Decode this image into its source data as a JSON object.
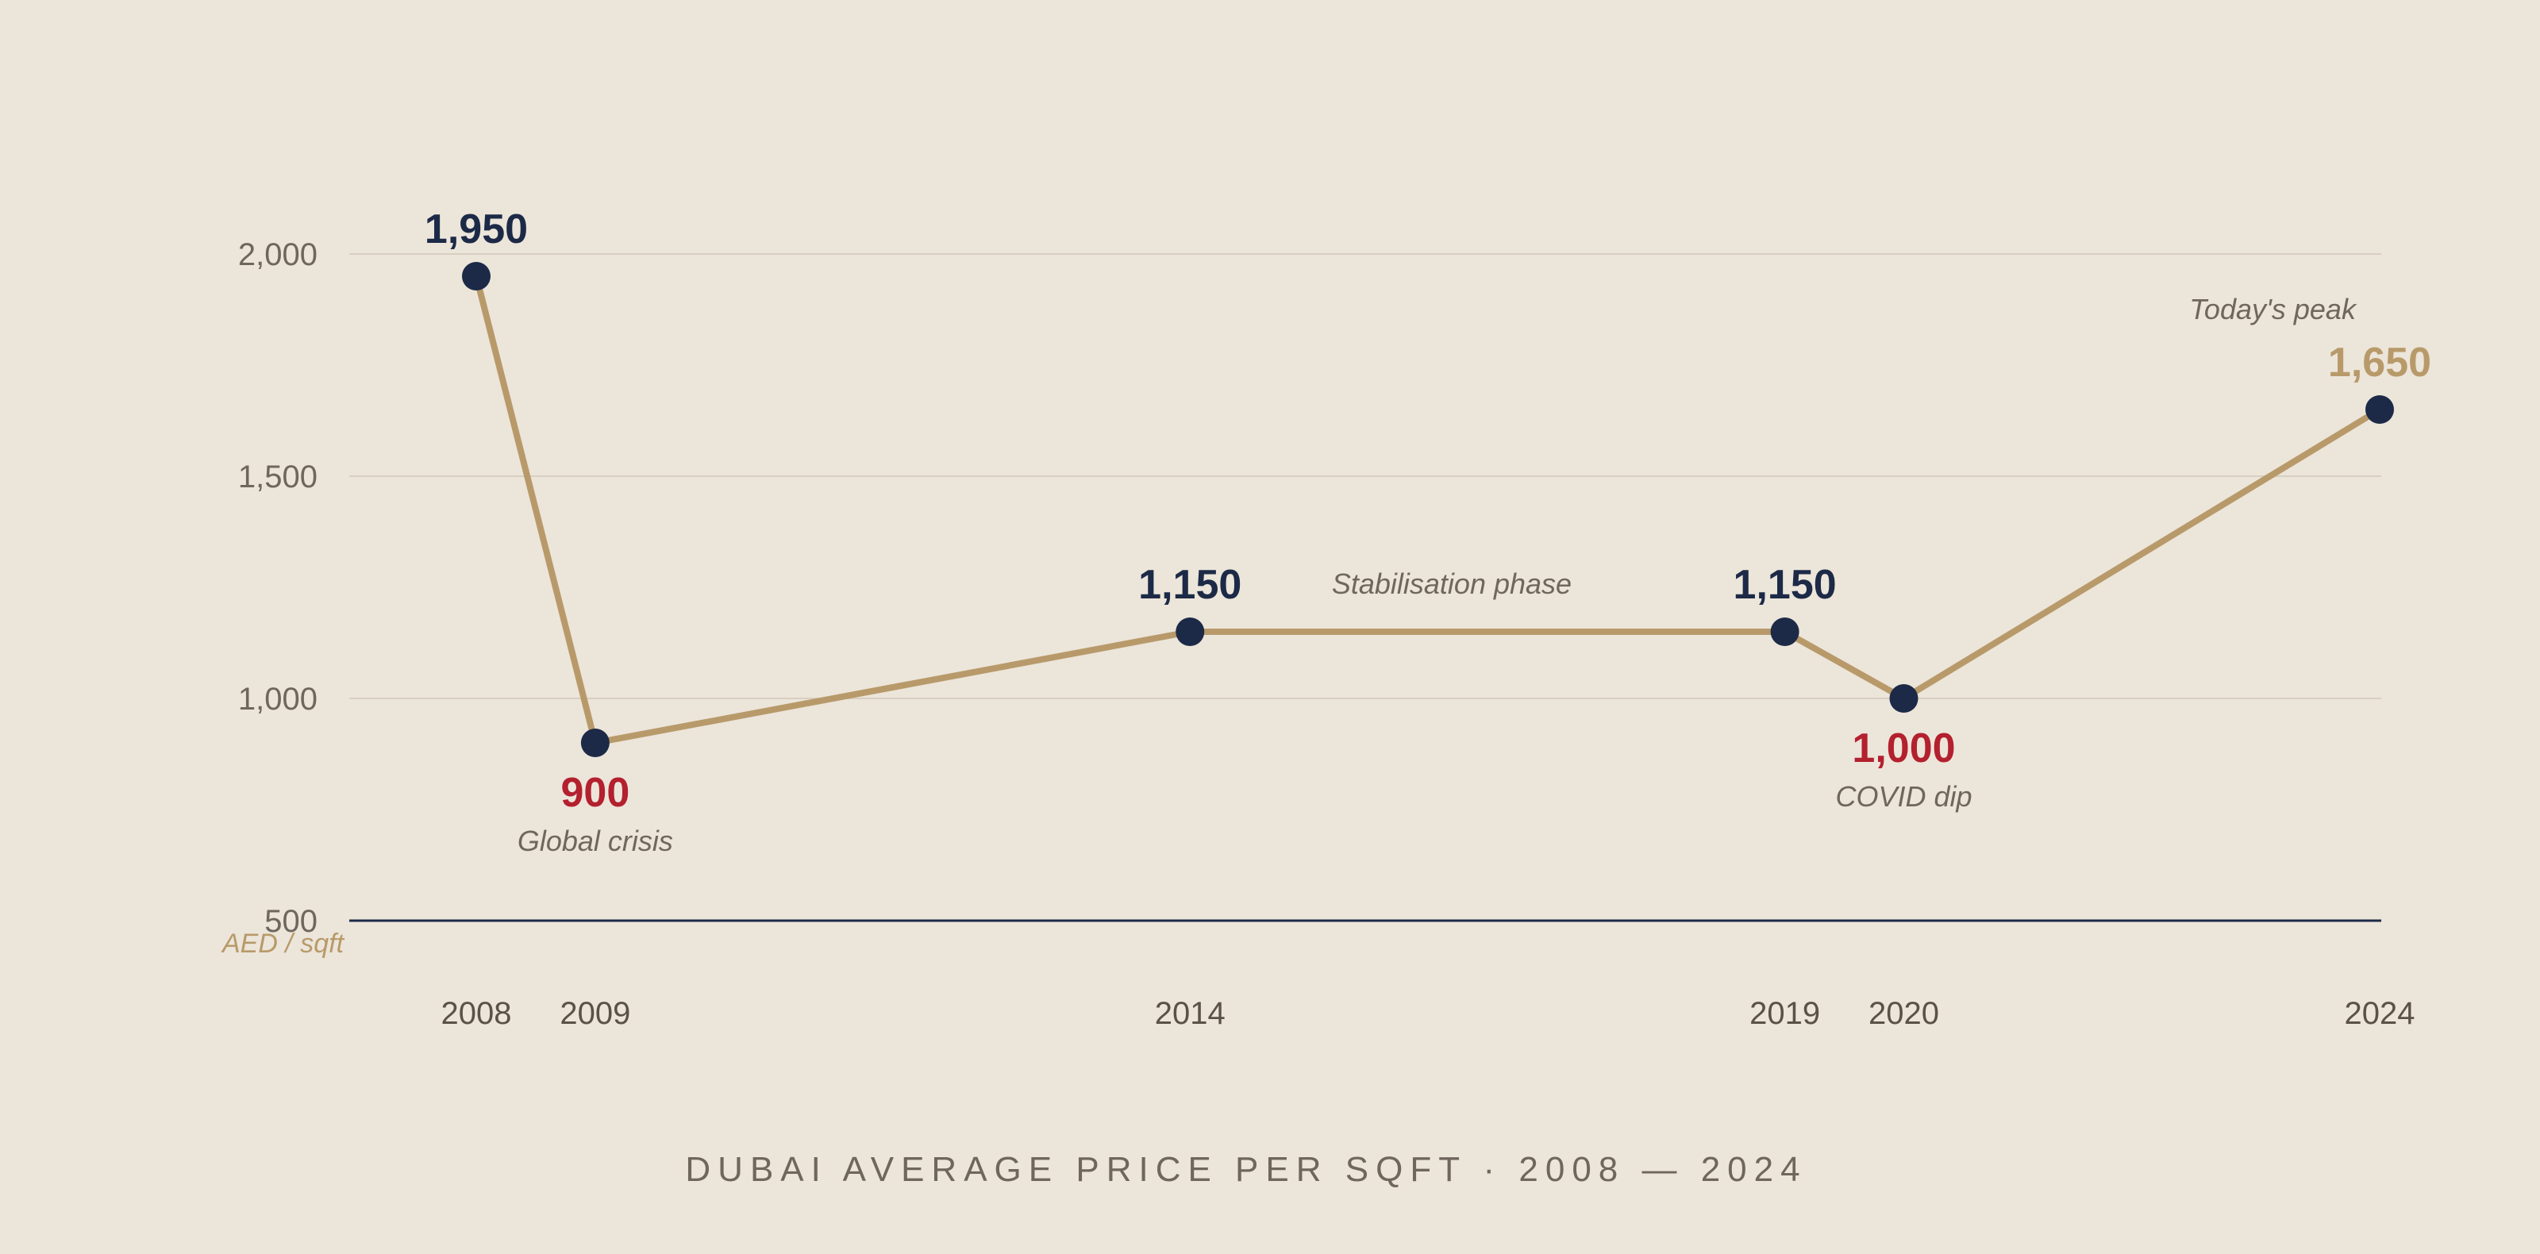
{
  "chart_data": {
    "type": "line",
    "title": "DUBAI AVERAGE PRICE PER SQFT · 2008 — 2024",
    "ylabel": "AED / sqft",
    "xlabel": "",
    "ylim": [
      500,
      2000
    ],
    "yticks": [
      2000,
      1500,
      1000,
      500
    ],
    "ytick_labels": [
      "2,000",
      "1,500",
      "1,000",
      "500"
    ],
    "x": [
      2008,
      2009,
      2014,
      2019,
      2020,
      2024
    ],
    "x_labels": [
      "2008",
      "2009",
      "2014",
      "2019",
      "2020",
      "2024"
    ],
    "values": [
      1950,
      900,
      1150,
      1150,
      1000,
      1650
    ],
    "value_labels": [
      "1,950",
      "900",
      "1,150",
      "1,150",
      "1,000",
      "1,650"
    ],
    "value_label_colors": [
      "#1c2a47",
      "#b3202e",
      "#1c2a47",
      "#1c2a47",
      "#b3202e",
      "#b89a6a"
    ],
    "line_color": "#b89a6a",
    "marker_color": "#1c2a47",
    "grid": true,
    "annotations": [
      {
        "text": "Global crisis",
        "x": 2009,
        "y": 900
      },
      {
        "text": "Stabilisation phase",
        "x": 2016.2,
        "y": 1150
      },
      {
        "text": "COVID dip",
        "x": 2020,
        "y": 1000
      },
      {
        "text": "Today's peak",
        "x": 2023.1,
        "y": 1650
      }
    ]
  }
}
